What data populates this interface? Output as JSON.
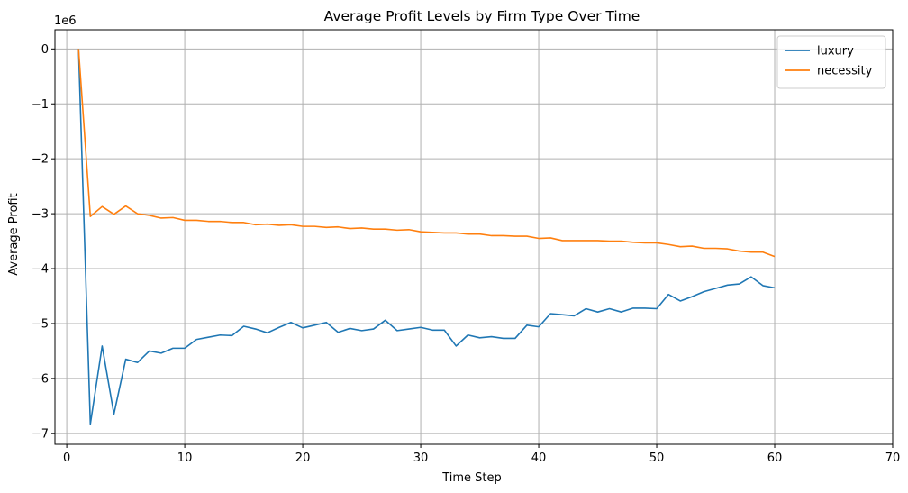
{
  "chart_data": {
    "type": "line",
    "title": "Average Profit Levels by Firm Type Over Time",
    "xlabel": "Time Step",
    "ylabel": "Average Profit",
    "y_offset_label": "1e6",
    "xlim": [
      -1,
      70
    ],
    "ylim": [
      -7.2,
      0.35
    ],
    "x_ticks": [
      0,
      10,
      20,
      30,
      40,
      50,
      60,
      70
    ],
    "y_ticks": [
      0,
      -1,
      -2,
      -3,
      -4,
      -5,
      -6,
      -7
    ],
    "y_tick_labels": [
      "0",
      "−1",
      "−2",
      "−3",
      "−4",
      "−5",
      "−6",
      "−7"
    ],
    "grid": true,
    "legend_position": "top-right",
    "x": [
      1,
      2,
      3,
      4,
      5,
      6,
      7,
      8,
      9,
      10,
      11,
      12,
      13,
      14,
      15,
      16,
      17,
      18,
      19,
      20,
      21,
      22,
      23,
      24,
      25,
      26,
      27,
      28,
      29,
      30,
      31,
      32,
      33,
      34,
      35,
      36,
      37,
      38,
      39,
      40,
      41,
      42,
      43,
      44,
      45,
      46,
      47,
      48,
      49,
      50,
      51,
      52,
      53,
      54,
      55,
      56,
      57,
      58,
      59,
      60
    ],
    "series": [
      {
        "name": "luxury",
        "color": "#1f77b4",
        "values": [
          0.0,
          -6.83,
          -5.41,
          -6.65,
          -5.65,
          -5.71,
          -5.5,
          -5.54,
          -5.45,
          -5.45,
          -5.29,
          -5.25,
          -5.21,
          -5.22,
          -5.05,
          -5.1,
          -5.17,
          -5.07,
          -4.98,
          -5.08,
          -5.03,
          -4.98,
          -5.16,
          -5.09,
          -5.13,
          -5.1,
          -4.94,
          -5.13,
          -5.1,
          -5.07,
          -5.12,
          -5.12,
          -5.41,
          -5.21,
          -5.26,
          -5.24,
          -5.27,
          -5.27,
          -5.03,
          -5.06,
          -4.82,
          -4.84,
          -4.86,
          -4.73,
          -4.79,
          -4.73,
          -4.79,
          -4.72,
          -4.72,
          -4.73,
          -4.47,
          -4.59,
          -4.51,
          -4.42,
          -4.36,
          -4.3,
          -4.28,
          -4.15,
          -4.31,
          -4.35
        ]
      },
      {
        "name": "necessity",
        "color": "#ff7f0e",
        "values": [
          0.0,
          -3.05,
          -2.87,
          -3.01,
          -2.86,
          -3.0,
          -3.03,
          -3.08,
          -3.07,
          -3.12,
          -3.12,
          -3.14,
          -3.14,
          -3.16,
          -3.16,
          -3.2,
          -3.19,
          -3.21,
          -3.2,
          -3.23,
          -3.23,
          -3.25,
          -3.24,
          -3.27,
          -3.26,
          -3.28,
          -3.28,
          -3.3,
          -3.29,
          -3.33,
          -3.34,
          -3.35,
          -3.35,
          -3.37,
          -3.37,
          -3.4,
          -3.4,
          -3.41,
          -3.41,
          -3.45,
          -3.44,
          -3.49,
          -3.49,
          -3.49,
          -3.49,
          -3.5,
          -3.5,
          -3.52,
          -3.53,
          -3.53,
          -3.56,
          -3.6,
          -3.59,
          -3.63,
          -3.63,
          -3.64,
          -3.68,
          -3.7,
          -3.7,
          -3.78
        ]
      }
    ]
  }
}
